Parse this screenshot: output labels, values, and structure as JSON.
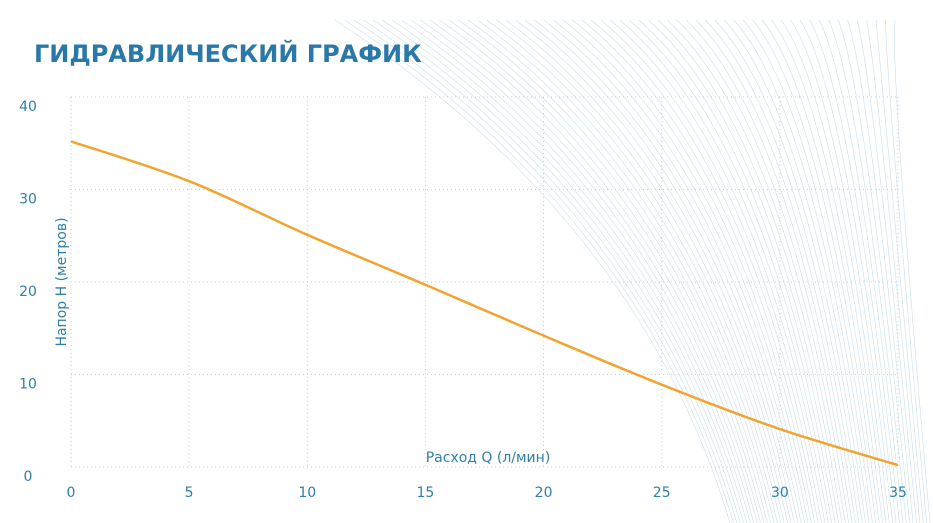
{
  "chart_data": {
    "type": "line",
    "title": "ГИДРАВЛИЧЕСКИЙ ГРАФИК",
    "x_label": "Расход Q (л/мин)",
    "y_label": "Напор H (метров)",
    "x": [
      0,
      5,
      10,
      15,
      20,
      25,
      30,
      35
    ],
    "series": [
      {
        "name": "H",
        "color": "#f0a532",
        "values": [
          35.2,
          30.9,
          25.1,
          19.7,
          14.2,
          8.9,
          4.1,
          0.2
        ]
      }
    ],
    "xlim": [
      0,
      35
    ],
    "xticks": [
      0,
      5,
      10,
      15,
      20,
      25,
      30,
      35
    ],
    "ylim": [
      0,
      40
    ],
    "yticks": [
      0,
      10,
      20,
      30,
      40
    ],
    "grid": true
  }
}
